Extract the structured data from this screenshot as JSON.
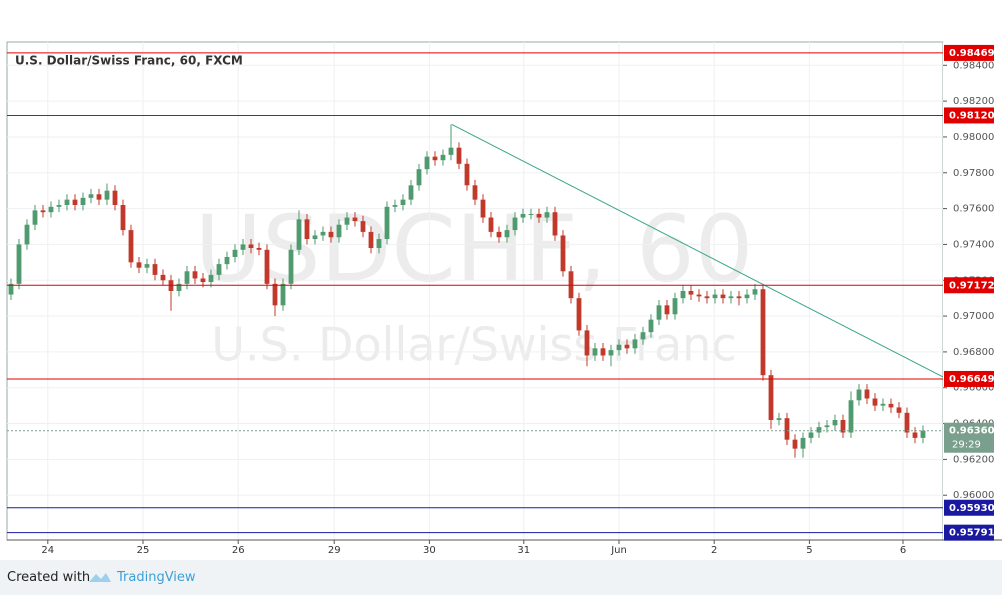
{
  "chart_data": {
    "type": "candlestick",
    "title": "U.S. Dollar/Swiss Franc, 60, FXCM",
    "watermark": "USDCHF, 60",
    "watermark_sub": "U.S. Dollar/Swiss Franc",
    "xlim": [
      0,
      117
    ],
    "ylim": [
      0.9575,
      0.9853
    ],
    "xticks": [
      {
        "value": 5.1,
        "label": "24"
      },
      {
        "value": 17,
        "label": "25"
      },
      {
        "value": 28.9,
        "label": "26"
      },
      {
        "value": 40.9,
        "label": "29"
      },
      {
        "value": 52.8,
        "label": "30"
      },
      {
        "value": 64.6,
        "label": "31"
      },
      {
        "value": 76.5,
        "label": "Jun"
      },
      {
        "value": 88.4,
        "label": "2"
      },
      {
        "value": 100.3,
        "label": "5"
      },
      {
        "value": 112,
        "label": "6"
      }
    ],
    "yticks": [
      {
        "value": 0.984,
        "label": "0.98400"
      },
      {
        "value": 0.982,
        "label": "0.98200"
      },
      {
        "value": 0.98,
        "label": "0.98000"
      },
      {
        "value": 0.978,
        "label": "0.97800"
      },
      {
        "value": 0.976,
        "label": "0.97600"
      },
      {
        "value": 0.974,
        "label": "0.97400"
      },
      {
        "value": 0.972,
        "label": "0.97200"
      },
      {
        "value": 0.97,
        "label": "0.97000"
      },
      {
        "value": 0.968,
        "label": "0.96800"
      },
      {
        "value": 0.966,
        "label": "0.96600"
      },
      {
        "value": 0.964,
        "label": "0.96400"
      },
      {
        "value": 0.962,
        "label": "0.96200"
      },
      {
        "value": 0.96,
        "label": "0.96000"
      }
    ],
    "grid": true,
    "up_color": "#4f9a6e",
    "down_color": "#c0392b",
    "open": [
      0.9712,
      0.9718,
      0.974,
      0.9751,
      0.9759,
      0.9758,
      0.9761,
      0.9762,
      0.9765,
      0.9762,
      0.9766,
      0.9768,
      0.9765,
      0.977,
      0.9762,
      0.9748,
      0.973,
      0.9727,
      0.9729,
      0.9723,
      0.972,
      0.9714,
      0.9718,
      0.9725,
      0.9721,
      0.9719,
      0.9723,
      0.9729,
      0.9733,
      0.9737,
      0.974,
      0.9738,
      0.9737,
      0.9718,
      0.9706,
      0.9718,
      0.9737,
      0.9754,
      0.9743,
      0.9745,
      0.9747,
      0.9744,
      0.9751,
      0.9755,
      0.9753,
      0.9747,
      0.9738,
      0.9743,
      0.9761,
      0.9762,
      0.9765,
      0.9773,
      0.9782,
      0.9789,
      0.9787,
      0.979,
      0.9794,
      0.9785,
      0.9773,
      0.9765,
      0.9755,
      0.9747,
      0.9744,
      0.9748,
      0.9755,
      0.9757,
      0.9757,
      0.9755,
      0.9758,
      0.9745,
      0.9725,
      0.971,
      0.9692,
      0.9678,
      0.9682,
      0.9678,
      0.9681,
      0.9684,
      0.9682,
      0.9687,
      0.9691,
      0.9698,
      0.9706,
      0.9701,
      0.971,
      0.9714,
      0.9712,
      0.9711,
      0.971,
      0.9712,
      0.971,
      0.9711,
      0.971,
      0.9712,
      0.9715,
      0.9667,
      0.9642,
      0.9643,
      0.9631,
      0.9626,
      0.9632,
      0.9635,
      0.9638,
      0.9639,
      0.9642,
      0.9635,
      0.9653,
      0.9659,
      0.9654,
      0.965,
      0.9651,
      0.9649,
      0.9646,
      0.9635,
      0.9632
    ],
    "high": [
      0.9721,
      0.9743,
      0.9754,
      0.9762,
      0.9762,
      0.9764,
      0.9765,
      0.9768,
      0.9768,
      0.9769,
      0.9771,
      0.9771,
      0.9774,
      0.9773,
      0.9765,
      0.9751,
      0.9733,
      0.9732,
      0.9732,
      0.9726,
      0.9723,
      0.9721,
      0.9728,
      0.9728,
      0.9724,
      0.9726,
      0.9732,
      0.9736,
      0.974,
      0.9743,
      0.9743,
      0.9741,
      0.974,
      0.9721,
      0.9721,
      0.974,
      0.9759,
      0.9757,
      0.9748,
      0.975,
      0.975,
      0.9754,
      0.9758,
      0.9758,
      0.9756,
      0.975,
      0.9746,
      0.9764,
      0.9765,
      0.9768,
      0.9776,
      0.9785,
      0.9792,
      0.9792,
      0.9793,
      0.9807,
      0.9797,
      0.9788,
      0.9776,
      0.9768,
      0.9758,
      0.975,
      0.9751,
      0.9758,
      0.976,
      0.976,
      0.976,
      0.9761,
      0.9761,
      0.9748,
      0.9728,
      0.9713,
      0.9695,
      0.9685,
      0.9685,
      0.9684,
      0.9687,
      0.9687,
      0.969,
      0.9694,
      0.9701,
      0.9709,
      0.9709,
      0.9713,
      0.9717,
      0.9717,
      0.9715,
      0.9714,
      0.9715,
      0.9715,
      0.9714,
      0.9714,
      0.9715,
      0.9718,
      0.9718,
      0.967,
      0.9646,
      0.9646,
      0.9634,
      0.9635,
      0.9638,
      0.9641,
      0.9642,
      0.9645,
      0.9645,
      0.9658,
      0.9662,
      0.9662,
      0.9657,
      0.9654,
      0.9654,
      0.9652,
      0.9649,
      0.9638,
      0.9639
    ],
    "low": [
      0.9709,
      0.9715,
      0.9737,
      0.9748,
      0.9755,
      0.9755,
      0.9758,
      0.9759,
      0.9759,
      0.9759,
      0.9763,
      0.9762,
      0.9762,
      0.9759,
      0.9745,
      0.9727,
      0.9724,
      0.9724,
      0.972,
      0.9717,
      0.9703,
      0.9711,
      0.9715,
      0.9718,
      0.9716,
      0.9716,
      0.972,
      0.9726,
      0.973,
      0.9734,
      0.9735,
      0.9734,
      0.9715,
      0.97,
      0.9703,
      0.9715,
      0.9734,
      0.974,
      0.974,
      0.9742,
      0.9741,
      0.9741,
      0.9748,
      0.975,
      0.9744,
      0.9735,
      0.9735,
      0.974,
      0.9758,
      0.9759,
      0.9762,
      0.977,
      0.9779,
      0.9784,
      0.9784,
      0.9787,
      0.9782,
      0.977,
      0.9762,
      0.9752,
      0.9744,
      0.9741,
      0.9741,
      0.9745,
      0.9752,
      0.9754,
      0.9752,
      0.9752,
      0.9742,
      0.9722,
      0.9707,
      0.9689,
      0.9672,
      0.9675,
      0.9675,
      0.9672,
      0.9678,
      0.9679,
      0.9679,
      0.9684,
      0.9688,
      0.9695,
      0.9698,
      0.9698,
      0.9707,
      0.9709,
      0.9708,
      0.9707,
      0.9707,
      0.9707,
      0.9707,
      0.9706,
      0.9707,
      0.9709,
      0.9664,
      0.9637,
      0.9639,
      0.9628,
      0.9621,
      0.9621,
      0.9629,
      0.9632,
      0.9635,
      0.9636,
      0.9632,
      0.9632,
      0.965,
      0.9651,
      0.9647,
      0.9647,
      0.9646,
      0.9643,
      0.9632,
      0.9629,
      0.9629
    ],
    "close": [
      0.9718,
      0.974,
      0.9751,
      0.9759,
      0.9758,
      0.9761,
      0.9762,
      0.9765,
      0.9762,
      0.9766,
      0.9768,
      0.9765,
      0.977,
      0.9762,
      0.9748,
      0.973,
      0.9727,
      0.9729,
      0.9723,
      0.972,
      0.9714,
      0.9718,
      0.9725,
      0.9721,
      0.9719,
      0.9723,
      0.9729,
      0.9733,
      0.9737,
      0.974,
      0.9738,
      0.9737,
      0.9718,
      0.9706,
      0.9718,
      0.9737,
      0.9754,
      0.9743,
      0.9745,
      0.9747,
      0.9744,
      0.9751,
      0.9755,
      0.9753,
      0.9747,
      0.9738,
      0.9743,
      0.9761,
      0.9762,
      0.9765,
      0.9773,
      0.9782,
      0.9789,
      0.9787,
      0.979,
      0.9794,
      0.9785,
      0.9773,
      0.9765,
      0.9755,
      0.9747,
      0.9744,
      0.9748,
      0.9755,
      0.9757,
      0.9757,
      0.9755,
      0.9758,
      0.9745,
      0.9725,
      0.971,
      0.9692,
      0.9678,
      0.9682,
      0.9678,
      0.9681,
      0.9684,
      0.9682,
      0.9687,
      0.9691,
      0.9698,
      0.9706,
      0.9701,
      0.971,
      0.9714,
      0.9712,
      0.9711,
      0.971,
      0.9712,
      0.971,
      0.9711,
      0.971,
      0.9712,
      0.9715,
      0.9667,
      0.9642,
      0.9643,
      0.9631,
      0.9626,
      0.9632,
      0.9635,
      0.9638,
      0.9639,
      0.9642,
      0.9635,
      0.9653,
      0.9659,
      0.9654,
      0.965,
      0.9651,
      0.9649,
      0.9646,
      0.9635,
      0.9632,
      0.9636
    ],
    "levels": [
      {
        "value": 0.98469,
        "color": "#e00000"
      },
      {
        "value": 0.9812,
        "label": "0.98120",
        "color": "#e00000"
      },
      {
        "value": 0.97172,
        "color": "#e00000"
      },
      {
        "value": 0.96649,
        "color": "#e00000"
      },
      {
        "value": 0.9593,
        "label": "0.95930",
        "color": "#1a1aa0"
      },
      {
        "value": 0.95791,
        "color": "#1a1aa0"
      }
    ],
    "trendline": {
      "x": [
        55.6,
        117
      ],
      "y": [
        0.9807,
        0.9666
      ],
      "color": "#3aa58a"
    },
    "last_price": {
      "value": 0.9636,
      "label": "0.96360",
      "color": "#7a9f8d"
    },
    "countdown": "29:29"
  },
  "footer": {
    "prefix": "Created with",
    "brand": "TradingView"
  }
}
